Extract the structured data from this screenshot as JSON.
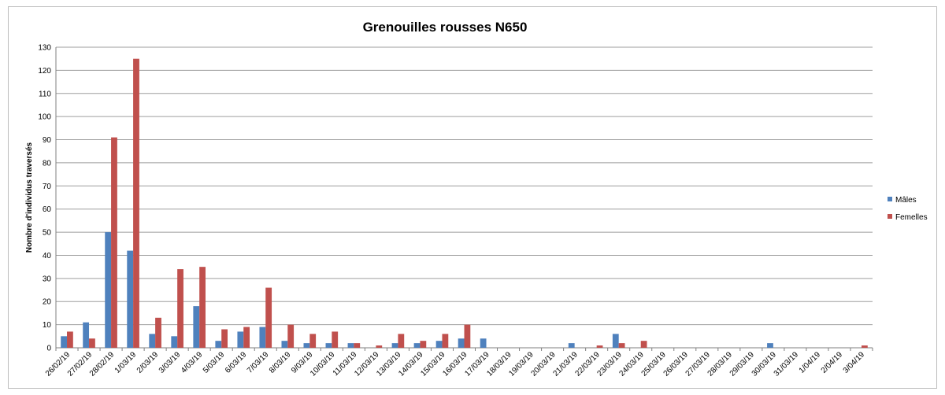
{
  "chart_data": {
    "type": "bar",
    "title": "Grenouilles rousses N650",
    "xlabel": "",
    "ylabel": "Nombre d'individus traversés",
    "ylim": [
      0,
      130
    ],
    "ytick_step": 10,
    "grid": true,
    "legend_position": "right",
    "categories": [
      "26/02/19",
      "27/02/19",
      "28/02/19",
      "1/03/19",
      "2/03/19",
      "3/03/19",
      "4/03/19",
      "5/03/19",
      "6/03/19",
      "7/03/19",
      "8/03/19",
      "9/03/19",
      "10/03/19",
      "11/03/19",
      "12/03/19",
      "13/03/19",
      "14/03/19",
      "15/03/19",
      "16/03/19",
      "17/03/19",
      "18/03/19",
      "19/03/19",
      "20/03/19",
      "21/03/19",
      "22/03/19",
      "23/03/19",
      "24/03/19",
      "25/03/19",
      "26/03/19",
      "27/03/19",
      "28/03/19",
      "29/03/19",
      "30/03/19",
      "31/03/19",
      "1/04/19",
      "2/04/19",
      "3/04/19"
    ],
    "series": [
      {
        "name": "Mâles",
        "color": "#4f81bd",
        "values": [
          5,
          11,
          50,
          42,
          6,
          5,
          18,
          3,
          7,
          9,
          3,
          2,
          2,
          2,
          0,
          2,
          2,
          3,
          4,
          4,
          0,
          0,
          0,
          2,
          0,
          6,
          0,
          0,
          0,
          0,
          0,
          0,
          2,
          0,
          0,
          0,
          0
        ]
      },
      {
        "name": "Femelles",
        "color": "#c0504d",
        "values": [
          7,
          4,
          91,
          125,
          13,
          34,
          35,
          8,
          9,
          26,
          10,
          6,
          7,
          2,
          1,
          6,
          3,
          6,
          10,
          0,
          0,
          0,
          0,
          0,
          1,
          2,
          3,
          0,
          0,
          0,
          0,
          0,
          0,
          0,
          0,
          0,
          1
        ]
      }
    ]
  }
}
